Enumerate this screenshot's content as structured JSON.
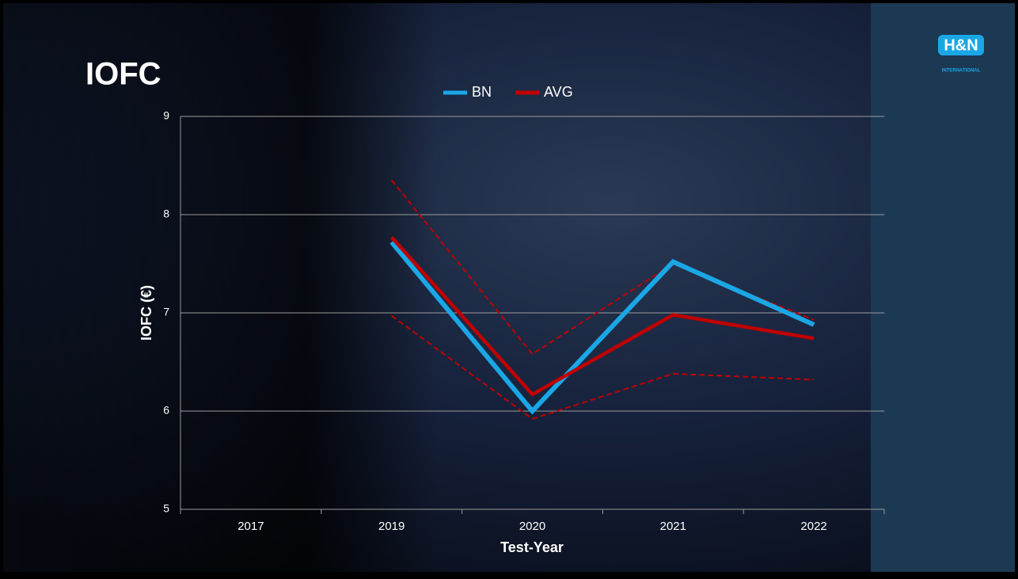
{
  "logo": {
    "mark": "H&N",
    "subtitle": "INTERNATIONAL"
  },
  "chart_data": {
    "type": "line",
    "title": "IOFC",
    "x_label": "Test-Year",
    "y_label": "IOFC (€)",
    "categories": [
      "2017",
      "2019",
      "2020",
      "2021",
      "2022"
    ],
    "series": [
      {
        "color": "#c00000",
        "dashed": true,
        "width": 2,
        "values": [
          null,
          8.35,
          6.58,
          7.5,
          6.93
        ]
      },
      {
        "color": "#c00000",
        "dashed": true,
        "width": 2,
        "values": [
          null,
          6.97,
          5.92,
          6.38,
          6.32
        ]
      },
      {
        "name": "BN",
        "color": "#1aa7e6",
        "width": 6,
        "values": [
          null,
          7.72,
          6.0,
          7.52,
          6.88
        ]
      },
      {
        "name": "AVG",
        "color": "#c00000",
        "width": 4.5,
        "values": [
          null,
          7.77,
          6.17,
          6.98,
          6.74
        ]
      }
    ],
    "ylim": [
      5,
      9
    ],
    "yticks": [
      5,
      6,
      7,
      8,
      9
    ],
    "grid": true,
    "legend": "top"
  }
}
